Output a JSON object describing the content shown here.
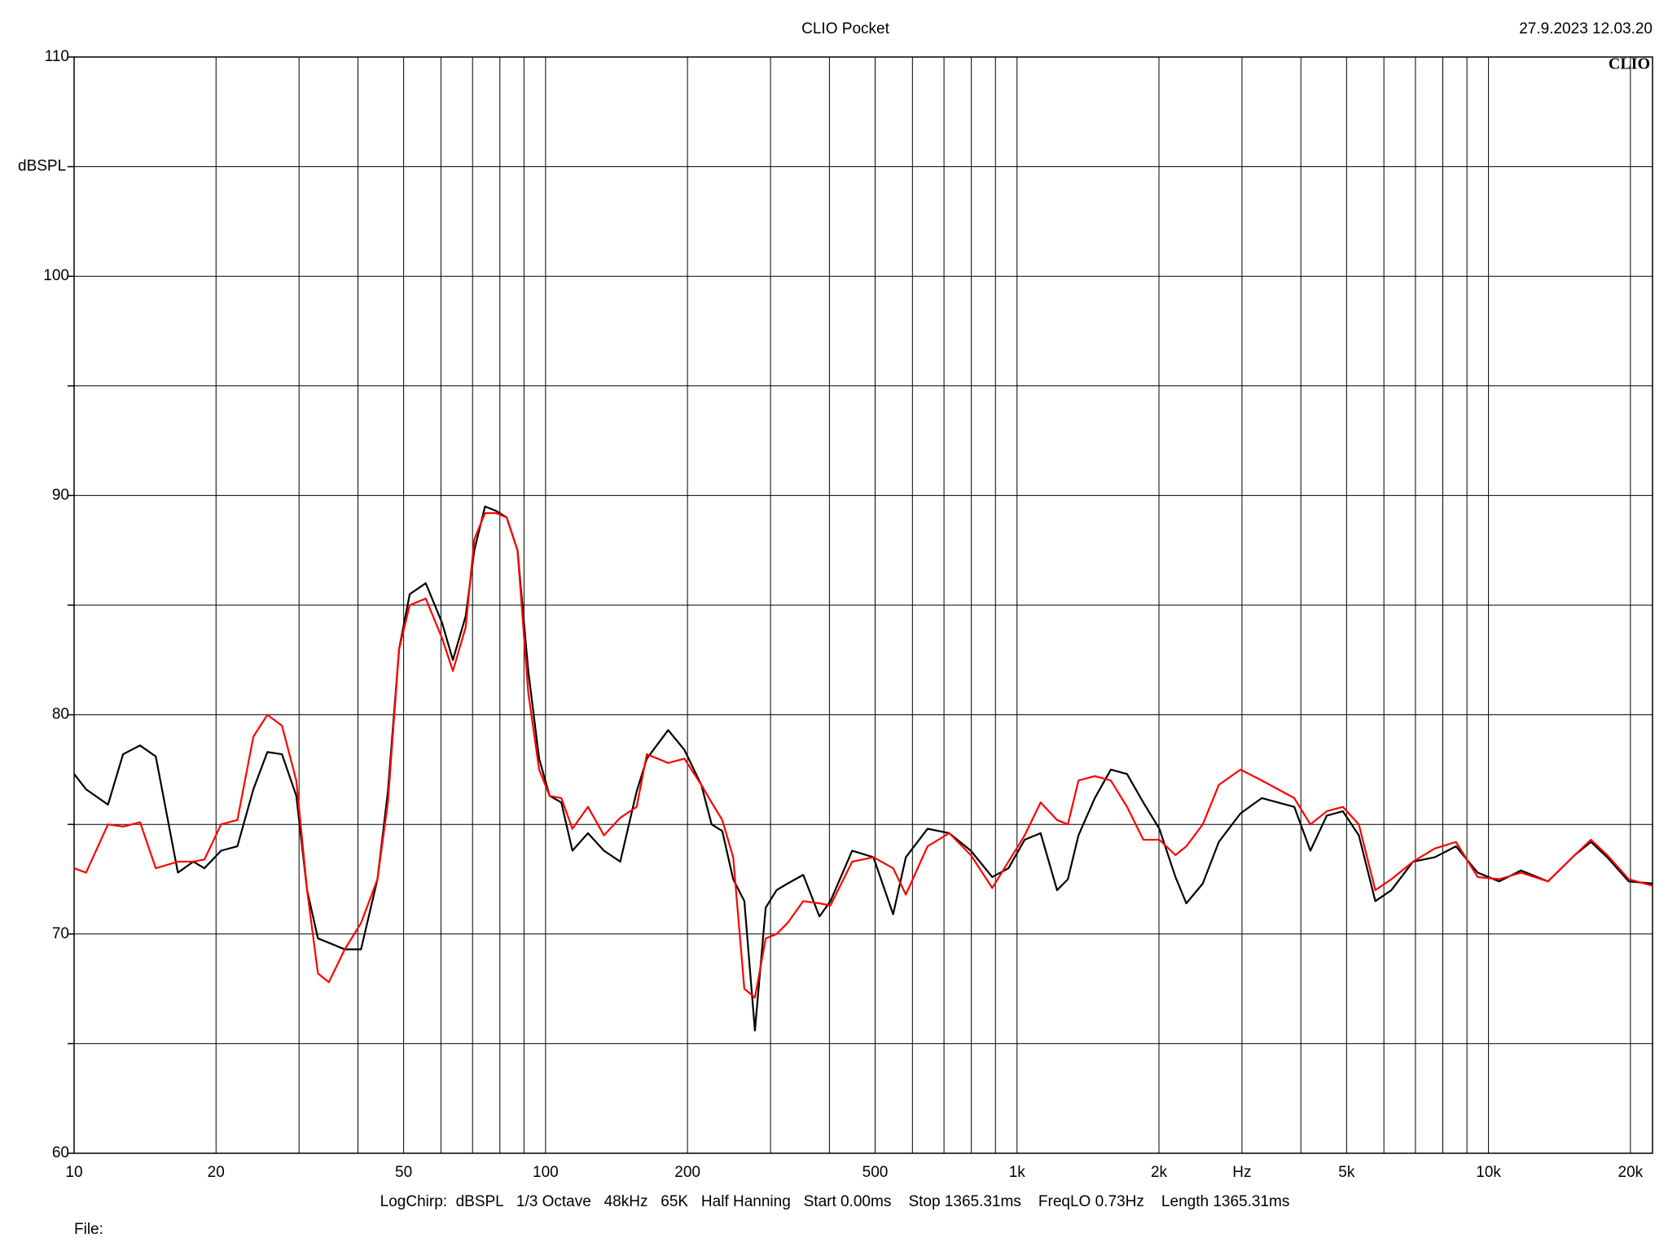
{
  "chart_data": {
    "type": "line",
    "title": "CLIO Pocket",
    "timestamp": "27.9.2023 12.03.20",
    "logo": "CLIO",
    "ylabel": "dBSPL",
    "xlabel": "Hz",
    "footer": "LogChirp:  dBSPL   1/3 Octave   48kHz   65K   Half Hanning   Start 0.00ms    Stop 1365.31ms    FreqLO 0.73Hz    Length 1365.31ms",
    "file_label": "File:",
    "xscale": "log",
    "grid": true,
    "xlim": [
      10,
      22280
    ],
    "ylim": [
      60,
      110
    ],
    "yticks": [
      60,
      70,
      80,
      90,
      100,
      110
    ],
    "ygrid": [
      65,
      75,
      85,
      95,
      105
    ],
    "xticks": [
      10,
      20,
      50,
      100,
      200,
      500,
      {
        "value": 1000,
        "label": "1k"
      },
      {
        "value": 2000,
        "label": "2k"
      },
      {
        "value": 5000,
        "label": "5k"
      },
      {
        "value": 10000,
        "label": "10k"
      },
      {
        "value": 20000,
        "label": "20k"
      }
    ],
    "xlabel_at": 3000,
    "xgrid": [
      30,
      40,
      60,
      70,
      80,
      90,
      300,
      400,
      600,
      700,
      800,
      900,
      3000,
      4000,
      6000,
      7000,
      8000,
      9000
    ],
    "x": [
      10,
      10.6,
      11.8,
      12.7,
      13.8,
      14.9,
      16.6,
      17.9,
      18.9,
      20.5,
      22.2,
      24.0,
      25.7,
      27.6,
      29.6,
      31.2,
      32.9,
      34.7,
      37.5,
      40.6,
      44.0,
      46.3,
      48.9,
      51.5,
      55.7,
      60.3,
      63.6,
      67.7,
      70.6,
      74.4,
      78.5,
      82.7,
      87.2,
      91.9,
      96.9,
      102,
      108,
      114,
      123,
      133,
      144,
      156,
      164,
      182,
      197,
      214,
      225,
      237,
      250,
      264,
      278,
      293,
      309,
      326,
      352,
      381,
      402,
      447,
      496,
      546,
      581,
      646,
      718,
      798,
      886,
      959,
      1038,
      1122,
      1216,
      1282,
      1350,
      1462,
      1581,
      1711,
      1853,
      2004,
      2168,
      2286,
      2477,
      2679,
      2978,
      3306,
      3873,
      4190,
      4539,
      4910,
      5309,
      5754,
      6223,
      6918,
      7691,
      8531,
      9484,
      10540,
      11720,
      13370,
      15240,
      16490,
      17860,
      19830,
      22280
    ],
    "series": [
      {
        "color": "#000000",
        "values": [
          77.3,
          76.6,
          75.9,
          78.2,
          78.6,
          78.1,
          72.8,
          73.3,
          73.0,
          73.8,
          74.0,
          76.6,
          78.3,
          78.2,
          76.3,
          72.0,
          69.8,
          69.6,
          69.3,
          69.3,
          72.5,
          76.5,
          83.0,
          85.5,
          86.0,
          84.2,
          82.5,
          84.5,
          87.5,
          89.5,
          89.3,
          89.0,
          87.5,
          82.0,
          78.0,
          76.3,
          76.0,
          73.8,
          74.6,
          73.8,
          73.3,
          76.5,
          78.0,
          79.3,
          78.4,
          76.8,
          75.0,
          74.7,
          72.5,
          71.5,
          65.6,
          71.2,
          72.0,
          72.3,
          72.7,
          70.8,
          71.5,
          73.8,
          73.5,
          70.9,
          73.5,
          74.8,
          74.6,
          73.8,
          72.6,
          73.0,
          74.3,
          74.6,
          72.0,
          72.5,
          74.5,
          76.2,
          77.5,
          77.3,
          76.0,
          74.8,
          72.6,
          71.4,
          72.3,
          74.2,
          75.5,
          76.2,
          75.8,
          73.8,
          75.4,
          75.6,
          74.5,
          71.5,
          72.0,
          73.3,
          73.5,
          74.0,
          72.8,
          72.4,
          72.9,
          72.4,
          73.6,
          74.2,
          73.5,
          72.4,
          72.3
        ]
      },
      {
        "color": "#ff0000",
        "values": [
          73.0,
          72.8,
          75.0,
          74.9,
          75.1,
          73.0,
          73.3,
          73.3,
          73.4,
          75.0,
          75.2,
          79.0,
          80.0,
          79.5,
          77.0,
          72.0,
          68.2,
          67.8,
          69.3,
          70.5,
          72.5,
          76.0,
          83.0,
          85.0,
          85.3,
          83.5,
          82.0,
          84.0,
          88.0,
          89.2,
          89.2,
          89.0,
          87.5,
          81.0,
          77.5,
          76.3,
          76.2,
          74.8,
          75.8,
          74.5,
          75.3,
          75.8,
          78.2,
          77.8,
          78.0,
          76.8,
          76.0,
          75.2,
          73.5,
          67.5,
          67.1,
          69.8,
          70.0,
          70.5,
          71.5,
          71.4,
          71.3,
          73.3,
          73.5,
          73.0,
          71.8,
          74.0,
          74.6,
          73.6,
          72.1,
          73.3,
          74.5,
          76.0,
          75.2,
          75.0,
          77.0,
          77.2,
          77.0,
          75.8,
          74.3,
          74.3,
          73.6,
          74.0,
          75.0,
          76.8,
          77.5,
          77.0,
          76.2,
          75.0,
          75.6,
          75.8,
          75.0,
          72.0,
          72.5,
          73.3,
          73.9,
          74.2,
          72.6,
          72.5,
          72.8,
          72.4,
          73.6,
          74.3,
          73.6,
          72.5,
          72.2
        ]
      }
    ]
  }
}
